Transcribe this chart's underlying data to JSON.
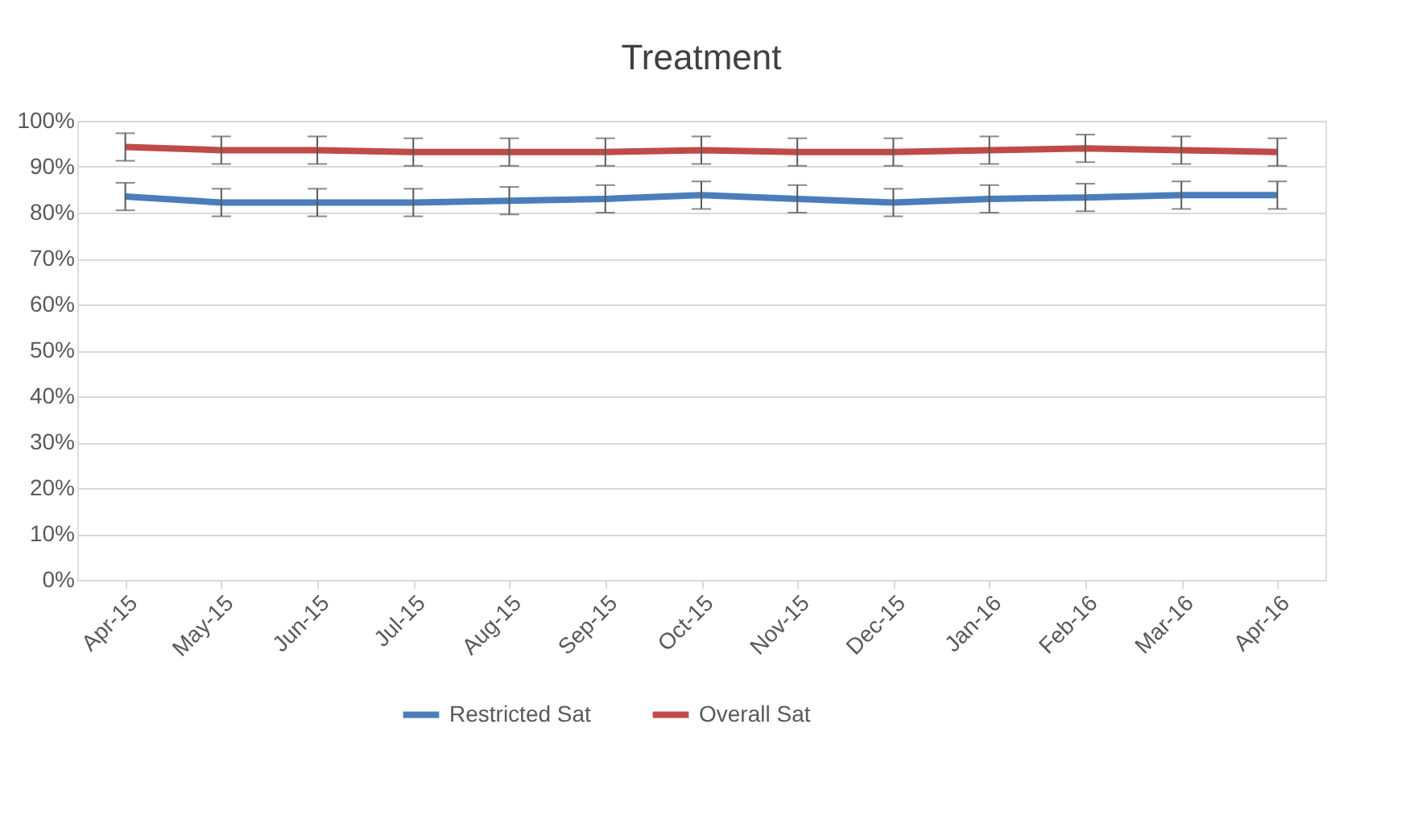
{
  "chart_data": {
    "type": "line",
    "title": "Treatment",
    "categories": [
      "Apr-15",
      "May-15",
      "Jun-15",
      "Jul-15",
      "Aug-15",
      "Sep-15",
      "Oct-15",
      "Nov-15",
      "Dec-15",
      "Jan-16",
      "Feb-16",
      "Mar-16",
      "Apr-16"
    ],
    "series": [
      {
        "name": "Restricted Sat",
        "color": "#4a7ebb",
        "values": [
          83.5,
          82.2,
          82.2,
          82.2,
          82.6,
          83,
          83.8,
          83,
          82.2,
          83,
          83.3,
          83.8,
          83.8
        ],
        "errors": [
          3,
          3,
          3,
          3,
          3,
          3,
          3,
          3,
          3,
          3,
          3,
          3,
          3
        ]
      },
      {
        "name": "Overall Sat",
        "color": "#be4b48",
        "values": [
          94.3,
          93.6,
          93.6,
          93.2,
          93.2,
          93.2,
          93.6,
          93.2,
          93.2,
          93.6,
          94,
          93.6,
          93.2
        ],
        "errors": [
          3,
          3,
          3,
          3,
          3,
          3,
          3,
          3,
          3,
          3,
          3,
          3,
          3
        ]
      }
    ],
    "ylim": [
      0,
      100
    ],
    "yticks": [
      {
        "value": 0,
        "label": "0%"
      },
      {
        "value": 10,
        "label": "10%"
      },
      {
        "value": 20,
        "label": "20%"
      },
      {
        "value": 30,
        "label": "30%"
      },
      {
        "value": 40,
        "label": "40%"
      },
      {
        "value": 50,
        "label": "50%"
      },
      {
        "value": 60,
        "label": "60%"
      },
      {
        "value": 70,
        "label": "70%"
      },
      {
        "value": 80,
        "label": "80%"
      },
      {
        "value": 90,
        "label": "90%"
      },
      {
        "value": 100,
        "label": "100%"
      }
    ],
    "grid": "y",
    "legend": "bottom",
    "marker": "none",
    "line_style": "solid"
  }
}
